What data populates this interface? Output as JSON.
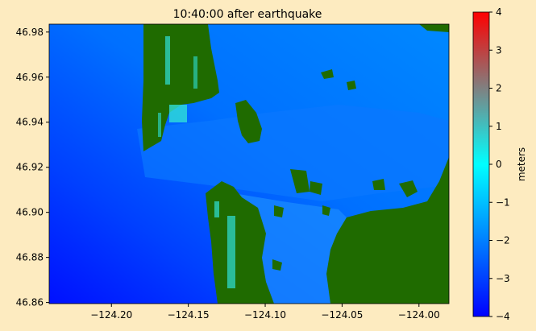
{
  "chart_data": {
    "type": "heatmap",
    "title": "10:40:00 after earthquake",
    "xlabel": "",
    "ylabel": "",
    "xlim": [
      -124.2405,
      -123.9805
    ],
    "ylim": [
      46.8595,
      46.9835
    ],
    "xticks": [
      -124.2,
      -124.15,
      -124.1,
      -124.05,
      -124.0
    ],
    "xtick_labels": [
      "−124.20",
      "−124.15",
      "−124.10",
      "−124.05",
      "−124.00"
    ],
    "yticks": [
      46.86,
      46.88,
      46.9,
      46.92,
      46.94,
      46.96,
      46.98
    ],
    "ytick_labels": [
      "46.86",
      "46.88",
      "46.90",
      "46.92",
      "46.94",
      "46.96",
      "46.98"
    ],
    "colorbar": {
      "label": "meters",
      "range": [
        -4,
        4
      ],
      "ticks": [
        -4,
        -3,
        -2,
        -1,
        0,
        1,
        2,
        3,
        4
      ],
      "tick_labels": [
        "−4",
        "−3",
        "−2",
        "−1",
        "0",
        "1",
        "2",
        "3",
        "4"
      ],
      "colors": [
        "#0000ff",
        "#0080ff",
        "#00ffff",
        "#808080",
        "#ff0000"
      ]
    },
    "land_color": "#1f6b00",
    "typical_water_level_m": -1.5
  }
}
